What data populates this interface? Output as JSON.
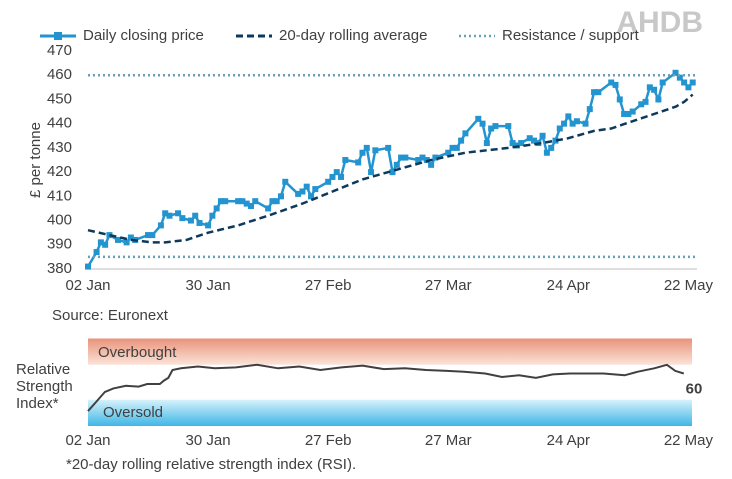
{
  "logo": "AHDB",
  "source": "Source: Euronext",
  "footnote": "*20-day rolling relative strength index (RSI).",
  "chart_data": [
    {
      "type": "line",
      "y_label": "£ per tonne",
      "xlim": [
        0,
        142
      ],
      "xticks": [
        {
          "value": 0,
          "label": "02 Jan"
        },
        {
          "value": 28,
          "label": "30 Jan"
        },
        {
          "value": 56,
          "label": "27 Feb"
        },
        {
          "value": 84,
          "label": "27 Mar"
        },
        {
          "value": 112,
          "label": "24 Apr"
        },
        {
          "value": 140,
          "label": "22 May"
        }
      ],
      "ylim": [
        380,
        470
      ],
      "yticks": [
        380,
        390,
        400,
        410,
        420,
        430,
        440,
        450,
        460,
        470
      ],
      "series": [
        {
          "name": "Daily closing price",
          "color": "#2394cf",
          "style": "solid-markers",
          "x": [
            0,
            2,
            3,
            4,
            5,
            7,
            9,
            10,
            11,
            14,
            15,
            17,
            18,
            19,
            21,
            22,
            24,
            25,
            26,
            28,
            29,
            30,
            31,
            32,
            35,
            36,
            37,
            38,
            39,
            42,
            43,
            44,
            45,
            46,
            49,
            50,
            51,
            52,
            53,
            56,
            57,
            58,
            59,
            60,
            63,
            64,
            65,
            66,
            67,
            70,
            71,
            72,
            73,
            74,
            77,
            78,
            79,
            80,
            81,
            84,
            85,
            86,
            87,
            88,
            91,
            92,
            93,
            94,
            95,
            98,
            99,
            100,
            101,
            103,
            104,
            105,
            106,
            107,
            108,
            109,
            110,
            111,
            112,
            113,
            114,
            116,
            117,
            118,
            119,
            122,
            123,
            124,
            125,
            126,
            127,
            129,
            130,
            131,
            132,
            133,
            134,
            137,
            138,
            139,
            140,
            141
          ],
          "values": [
            381,
            387,
            391,
            390,
            394,
            392,
            391,
            393,
            392,
            394,
            394,
            398,
            403,
            402,
            403,
            401,
            400,
            402,
            399,
            398,
            402,
            405,
            408,
            408,
            408,
            408,
            407,
            406,
            408,
            405,
            408,
            408,
            410,
            416,
            411,
            412,
            414,
            410,
            413,
            416,
            418,
            420,
            418,
            425,
            424,
            428,
            430,
            420,
            429,
            430,
            420,
            423,
            426,
            426,
            425,
            426,
            425,
            423,
            426,
            428,
            430,
            430,
            433,
            436,
            442,
            440,
            432,
            438,
            439,
            439,
            432,
            431,
            432,
            434,
            433,
            432,
            435,
            428,
            430,
            433,
            438,
            440,
            443,
            440,
            441,
            440,
            446,
            453,
            453,
            457,
            456,
            450,
            444,
            444,
            445,
            448,
            449,
            455,
            454,
            450,
            457,
            461,
            459,
            457,
            455,
            457
          ]
        },
        {
          "name": "20-day rolling average",
          "color": "#0d3a5c",
          "style": "dashed",
          "x": [
            0,
            5,
            10,
            15,
            18,
            23,
            28,
            35,
            42,
            50,
            57,
            64,
            72,
            80,
            88,
            98,
            106,
            112,
            118,
            122,
            127,
            132,
            137,
            139,
            141
          ],
          "values": [
            396,
            394,
            392,
            391,
            391,
            392,
            395,
            398,
            402,
            407,
            412,
            417,
            421,
            425,
            428,
            430,
            432,
            434,
            437,
            438,
            441,
            444,
            447,
            449,
            452
          ]
        },
        {
          "name": "Resistance / support",
          "color": "#6b9fb6",
          "style": "dotted",
          "levels": [
            460,
            385
          ]
        }
      ]
    },
    {
      "type": "rsi",
      "y_label": "Relative Strength Index*",
      "overbought_label": "Overbought",
      "oversold_label": "Oversold",
      "ylim": [
        0,
        100
      ],
      "overbought": 70,
      "oversold": 30,
      "color": "#404040",
      "xlim": [
        0,
        142
      ],
      "xticks": [
        {
          "value": 0,
          "label": "02 Jan"
        },
        {
          "value": 28,
          "label": "30 Jan"
        },
        {
          "value": 56,
          "label": "27 Feb"
        },
        {
          "value": 84,
          "label": "27 Mar"
        },
        {
          "value": 112,
          "label": "24 Apr"
        },
        {
          "value": 140,
          "label": "22 May"
        }
      ],
      "x": [
        0,
        2,
        4,
        6,
        9,
        12,
        14,
        17,
        18,
        19,
        20,
        22,
        26,
        30,
        35,
        40,
        45,
        50,
        55,
        60,
        65,
        70,
        75,
        80,
        85,
        89,
        94,
        98,
        102,
        106,
        110,
        114,
        118,
        122,
        127,
        130,
        134,
        137,
        139,
        141
      ],
      "values": [
        17,
        28,
        39,
        43,
        46,
        45,
        48,
        48,
        52,
        55,
        64,
        66,
        68,
        66,
        67,
        70,
        66,
        68,
        64,
        67,
        69,
        65,
        66,
        64,
        63,
        62,
        60,
        56,
        58,
        55,
        59,
        60,
        60,
        60,
        58,
        62,
        66,
        70,
        63,
        60
      ]
    }
  ]
}
